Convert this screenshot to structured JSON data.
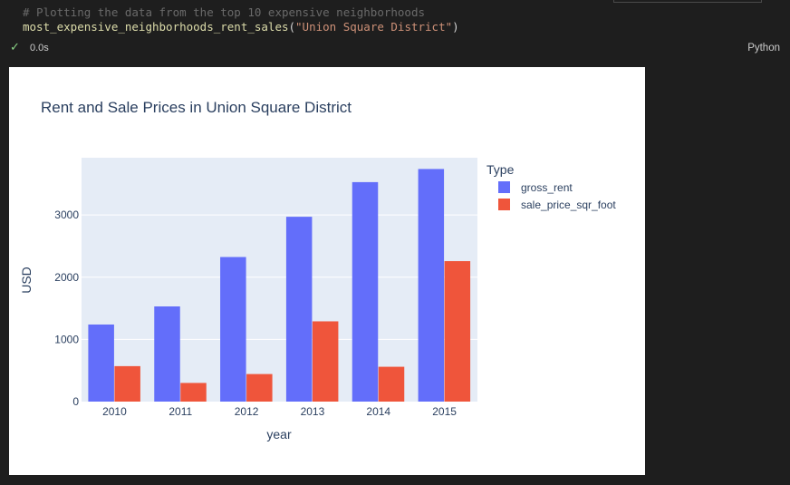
{
  "cell": {
    "comment": "# Plotting the data from the top 10 expensive neighborhoods",
    "code_fn": "most_expensive_neighborhoods_rent_sales",
    "code_open": "(",
    "code_arg": "\"Union Square District\"",
    "code_close": ")",
    "exec_time": "0.0s",
    "language": "Python"
  },
  "colors": {
    "gross_rent": "#636efa",
    "sale_price": "#ef553b",
    "plot_bg": "#e5ecf6",
    "success": "#89d185"
  },
  "chart_data": {
    "type": "bar",
    "title": "Rent and Sale Prices in Union Square District",
    "xlabel": "year",
    "ylabel": "USD",
    "categories": [
      "2010",
      "2011",
      "2012",
      "2013",
      "2014",
      "2015"
    ],
    "series": [
      {
        "name": "gross_rent",
        "values": [
          1239,
          1530,
          2324,
          2971,
          3528,
          3739
        ]
      },
      {
        "name": "sale_price_sqr_foot",
        "values": [
          570,
          300,
          443,
          1290,
          560,
          2258
        ]
      }
    ],
    "ylim": [
      0,
      3920
    ],
    "yticks": [
      0,
      1000,
      2000,
      3000
    ],
    "legend_title": "Type",
    "legend_position": "right",
    "grid": true,
    "barmode": "group"
  }
}
